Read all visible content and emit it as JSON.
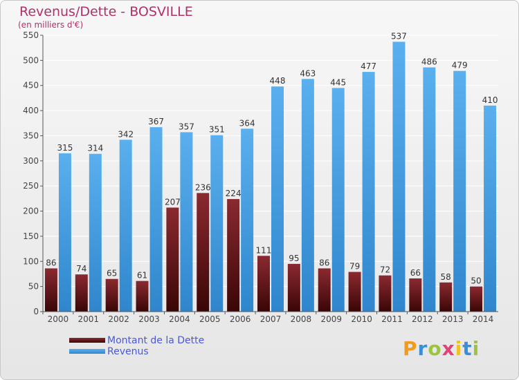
{
  "chart_data": {
    "type": "bar",
    "title": "Revenus/Dette - BOSVILLE",
    "subtitle": "(en milliers d'€)",
    "categories": [
      "2000",
      "2001",
      "2002",
      "2003",
      "2004",
      "2005",
      "2006",
      "2007",
      "2008",
      "2009",
      "2010",
      "2011",
      "2012",
      "2013",
      "2014"
    ],
    "series": [
      {
        "name": "Montant de la Dette",
        "color": "#7a1d22",
        "values": [
          86,
          74,
          65,
          61,
          207,
          236,
          224,
          111,
          95,
          86,
          79,
          72,
          66,
          58,
          50
        ]
      },
      {
        "name": "Revenus",
        "color": "#4aa3e6",
        "values": [
          315,
          314,
          342,
          367,
          357,
          351,
          364,
          448,
          463,
          445,
          477,
          537,
          486,
          479,
          410
        ]
      }
    ],
    "ylim": [
      0,
      550
    ],
    "yticks": [
      0,
      50,
      100,
      150,
      200,
      250,
      300,
      350,
      400,
      450,
      500,
      550
    ],
    "grid": true,
    "legend": "bottom-left",
    "data_labels": true
  },
  "logo": {
    "text": "Proxiti"
  }
}
